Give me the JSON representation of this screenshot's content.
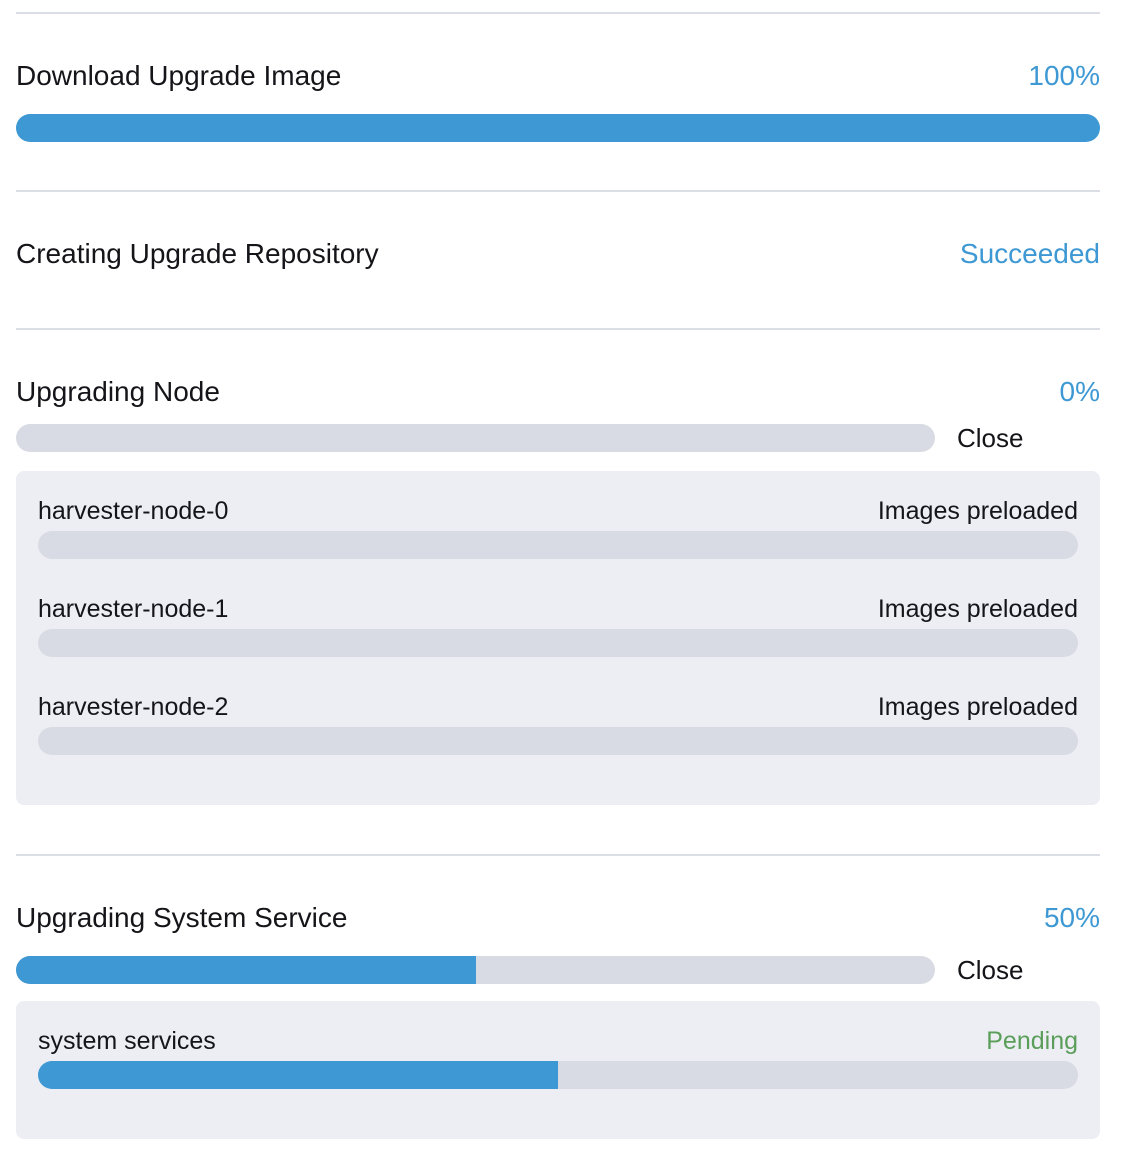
{
  "colors": {
    "accent-blue": "#3d98d3",
    "success-green": "#5a9e5a",
    "text-dark": "#141419",
    "track-gray": "#d9dbe4",
    "panel-gray": "#eceef3",
    "divider-gray": "#dcdee6"
  },
  "sections": [
    {
      "title": "Download Upgrade Image",
      "status": "100%",
      "progress": 100
    },
    {
      "title": "Creating Upgrade Repository",
      "status": "Succeeded"
    },
    {
      "title": "Upgrading Node",
      "status": "0%",
      "progress": 0,
      "close_label": "Close",
      "subtasks": [
        {
          "name": "harvester-node-0",
          "status": "Images preloaded",
          "progress": 0
        },
        {
          "name": "harvester-node-1",
          "status": "Images preloaded",
          "progress": 0
        },
        {
          "name": "harvester-node-2",
          "status": "Images preloaded",
          "progress": 0
        }
      ]
    },
    {
      "title": "Upgrading System Service",
      "status": "50%",
      "progress": 50,
      "close_label": "Close",
      "subtasks": [
        {
          "name": "system services",
          "status": "Pending",
          "progress": 50
        }
      ]
    }
  ]
}
